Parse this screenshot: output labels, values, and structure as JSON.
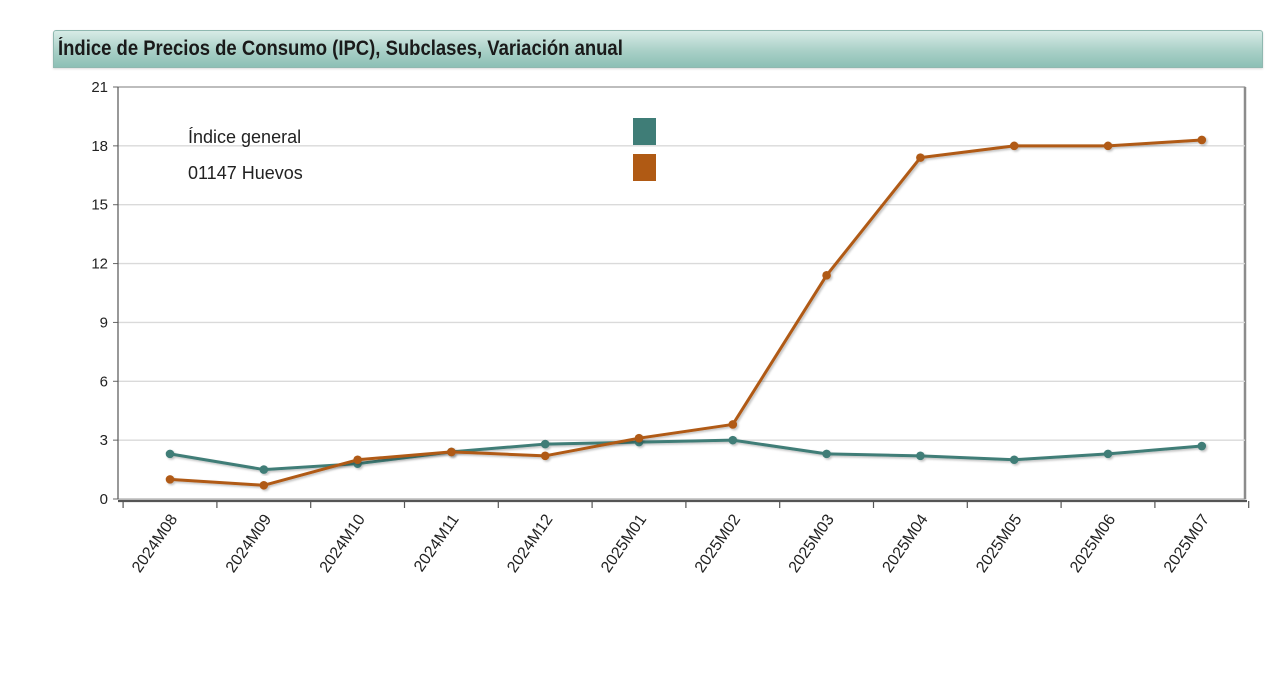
{
  "header": {
    "title": "Índice de Precios de Consumo (IPC), Subclases, Variación anual"
  },
  "chart_data": {
    "type": "line",
    "title": "Índice de Precios de Consumo (IPC), Subclases, Variación anual",
    "xlabel": "",
    "ylabel": "",
    "categories": [
      "2024M08",
      "2024M09",
      "2024M10",
      "2024M11",
      "2024M12",
      "2025M01",
      "2025M02",
      "2025M03",
      "2025M04",
      "2025M05",
      "2025M06",
      "2025M07"
    ],
    "series": [
      {
        "name": "Índice general",
        "color": "#3f7d77",
        "values": [
          2.3,
          1.5,
          1.8,
          2.4,
          2.8,
          2.9,
          3.0,
          2.3,
          2.2,
          2.0,
          2.3,
          2.7
        ]
      },
      {
        "name": "01147 Huevos",
        "color": "#b05a14",
        "values": [
          1.0,
          0.7,
          2.0,
          2.4,
          2.2,
          3.1,
          3.8,
          11.4,
          17.4,
          18.0,
          18.0,
          18.3
        ]
      }
    ],
    "ylim": [
      0,
      21
    ],
    "yticks": [
      0,
      3,
      6,
      9,
      12,
      15,
      18,
      21
    ],
    "grid": true,
    "legend": "top-left"
  }
}
